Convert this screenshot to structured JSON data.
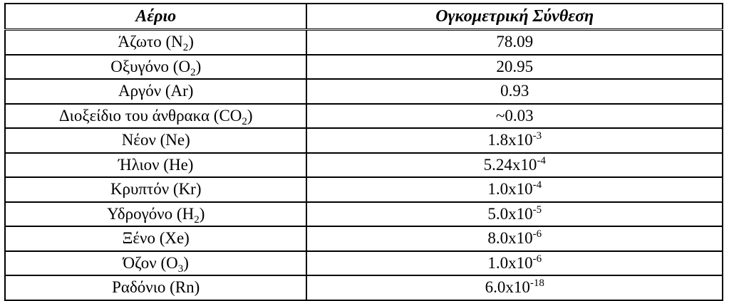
{
  "table": {
    "headers": {
      "gas": "Αέριο",
      "composition": "Ογκομετρική Σύνθεση"
    },
    "rows": [
      {
        "name": "Άζωτο (N",
        "sub": "2",
        "close": ")",
        "value": "78.09",
        "exp": ""
      },
      {
        "name": "Οξυγόνο (O",
        "sub": "2",
        "close": ")",
        "value": "20.95",
        "exp": ""
      },
      {
        "name": "Αργόν (Ar)",
        "sub": "",
        "close": "",
        "value": "0.93",
        "exp": ""
      },
      {
        "name": "Διοξείδιο του άνθρακα (CO",
        "sub": "2",
        "close": ")",
        "value": "~0.03",
        "exp": ""
      },
      {
        "name": "Νέον (Ne)",
        "sub": "",
        "close": "",
        "value": "1.8x10",
        "exp": "-3"
      },
      {
        "name": "Ήλιον (He)",
        "sub": "",
        "close": "",
        "value": "5.24x10",
        "exp": "-4"
      },
      {
        "name": "Κρυπτόν (Kr)",
        "sub": "",
        "close": "",
        "value": "1.0x10",
        "exp": "-4"
      },
      {
        "name": "Υδρογόνο (H",
        "sub": "2",
        "close": ")",
        "value": "5.0x10",
        "exp": "-5"
      },
      {
        "name": "Ξένο (Xe)",
        "sub": "",
        "close": "",
        "value": "8.0x10",
        "exp": "-6"
      },
      {
        "name": "Όζον (O",
        "sub": "3",
        "close": ")",
        "value": "1.0x10",
        "exp": "-6"
      },
      {
        "name": "Ραδόνιο (Rn)",
        "sub": "",
        "close": "",
        "value": "6.0x10",
        "exp": "-18"
      }
    ]
  }
}
